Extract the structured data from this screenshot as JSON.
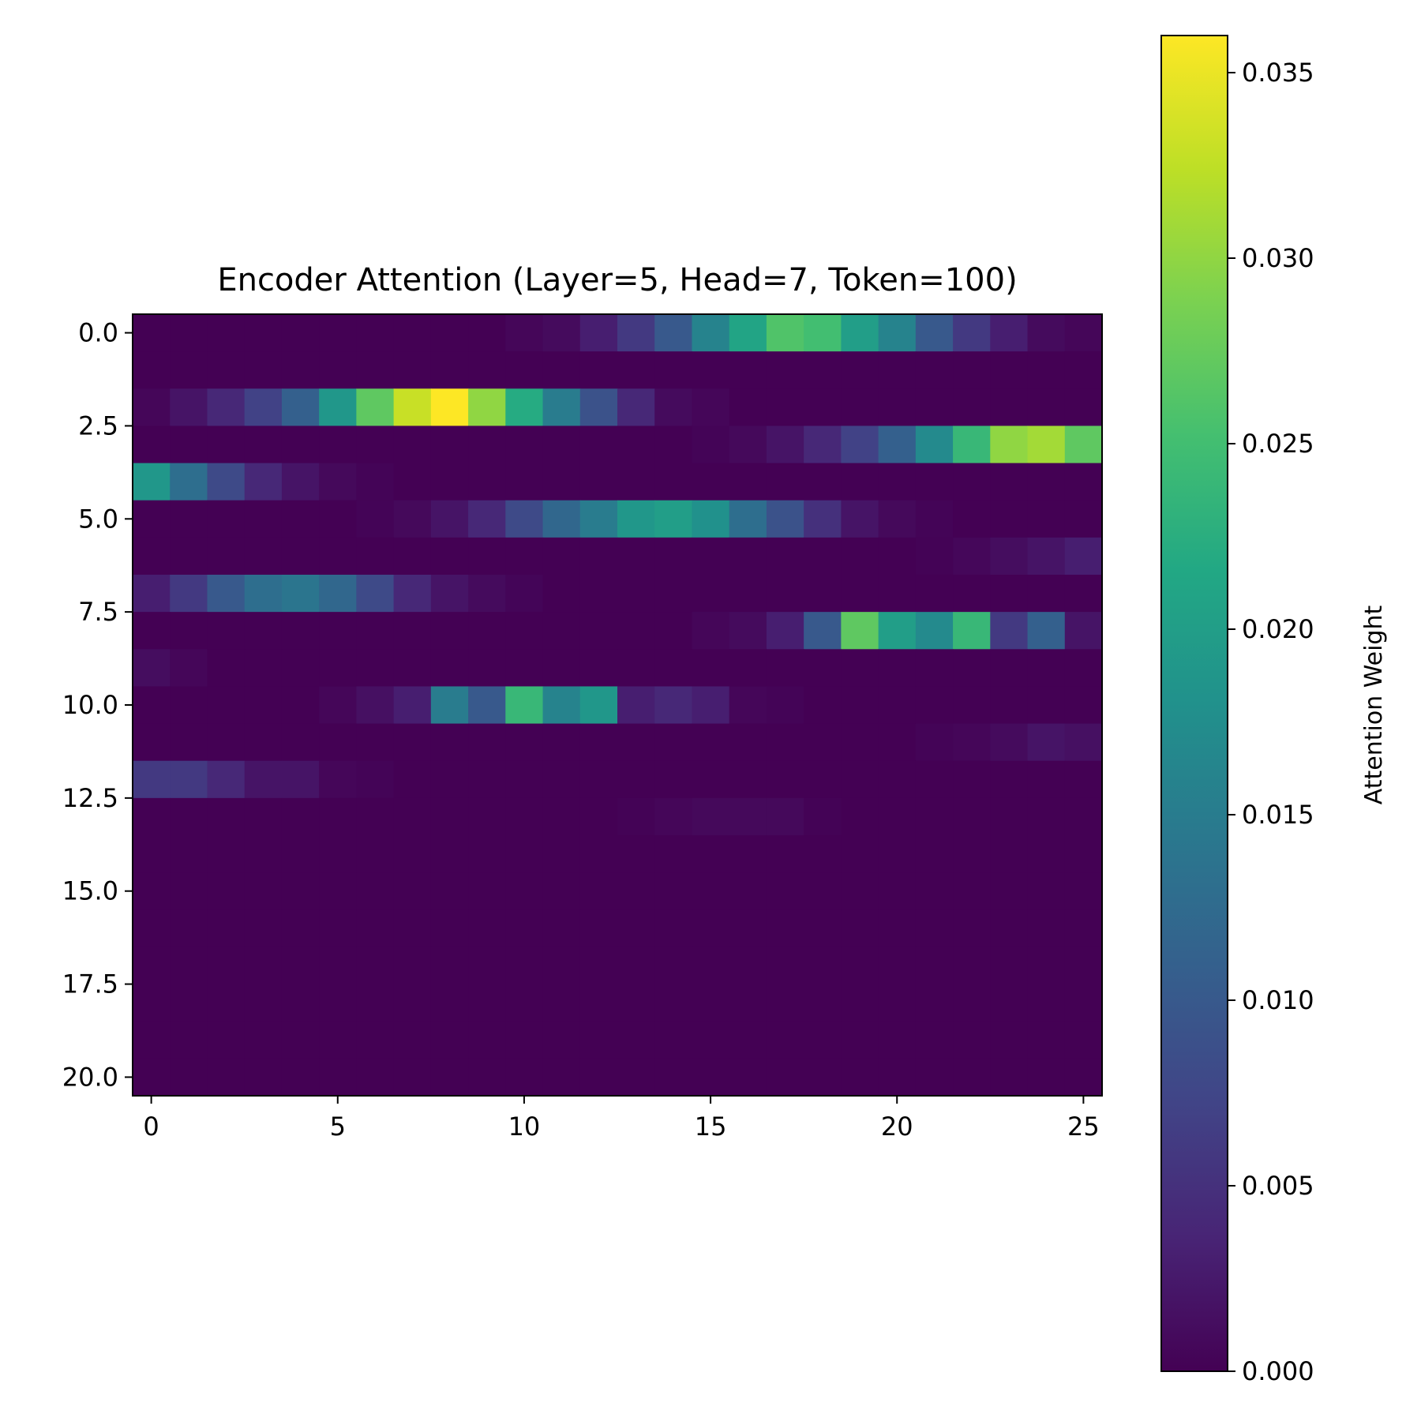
{
  "chart_data": {
    "type": "heatmap",
    "title": "Encoder Attention (Layer=5, Head=7, Token=100)",
    "xlabel": "",
    "ylabel": "",
    "n_rows": 21,
    "n_cols": 26,
    "x_ticks": [
      0,
      5,
      10,
      15,
      20,
      25
    ],
    "x_tick_labels": [
      "0",
      "5",
      "10",
      "15",
      "20",
      "25"
    ],
    "y_ticks": [
      0,
      2.5,
      5,
      7.5,
      10,
      12.5,
      15,
      17.5,
      20
    ],
    "y_tick_labels": [
      "0.0",
      "2.5",
      "5.0",
      "7.5",
      "10.0",
      "12.5",
      "15.0",
      "17.5",
      "20.0"
    ],
    "colormap": "viridis",
    "colorbar": {
      "label": "Attention Weight",
      "range": [
        0,
        0.036
      ],
      "ticks": [
        0,
        0.005,
        0.01,
        0.015,
        0.02,
        0.025,
        0.03,
        0.035
      ],
      "tick_labels": [
        "0.000",
        "0.005",
        "0.010",
        "0.015",
        "0.020",
        "0.025",
        "0.030",
        "0.035"
      ]
    },
    "values": [
      [
        0,
        0,
        0,
        0,
        0,
        0,
        0,
        0,
        0,
        0,
        0.0005,
        0.001,
        0.003,
        0.006,
        0.01,
        0.016,
        0.021,
        0.026,
        0.025,
        0.02,
        0.016,
        0.01,
        0.006,
        0.003,
        0.001,
        0.0005
      ],
      [
        0,
        0,
        0,
        0,
        0,
        0,
        0,
        0,
        0,
        0,
        0,
        0,
        0,
        0,
        0,
        0,
        0,
        0,
        0,
        0,
        0,
        0,
        0,
        0,
        0,
        0
      ],
      [
        0.0005,
        0.002,
        0.004,
        0.007,
        0.011,
        0.019,
        0.027,
        0.033,
        0.036,
        0.03,
        0.022,
        0.015,
        0.009,
        0.004,
        0.001,
        0.0005,
        0,
        0,
        0,
        0,
        0,
        0,
        0,
        0,
        0,
        0
      ],
      [
        0,
        0,
        0,
        0,
        0,
        0,
        0,
        0,
        0,
        0,
        0,
        0,
        0,
        0,
        0,
        0.0003,
        0.0008,
        0.002,
        0.004,
        0.007,
        0.011,
        0.017,
        0.024,
        0.03,
        0.031,
        0.027
      ],
      [
        0.019,
        0.013,
        0.008,
        0.004,
        0.002,
        0.0008,
        0.0003,
        0,
        0,
        0,
        0,
        0,
        0,
        0,
        0,
        0,
        0,
        0,
        0,
        0,
        0,
        0,
        0,
        0,
        0,
        0
      ],
      [
        0,
        0,
        0,
        0,
        0,
        0,
        0.0003,
        0.0008,
        0.002,
        0.004,
        0.008,
        0.012,
        0.015,
        0.019,
        0.02,
        0.018,
        0.013,
        0.009,
        0.005,
        0.002,
        0.0008,
        0.0003,
        0,
        0,
        0,
        0
      ],
      [
        0,
        0,
        0,
        0,
        0,
        0,
        0,
        0,
        0,
        0,
        0,
        0,
        0,
        0,
        0,
        0,
        0,
        0,
        0,
        0,
        0,
        0.0002,
        0.0006,
        0.0012,
        0.002,
        0.003
      ],
      [
        0.003,
        0.006,
        0.01,
        0.013,
        0.014,
        0.012,
        0.008,
        0.004,
        0.002,
        0.001,
        0.0004,
        0,
        0,
        0,
        0,
        0,
        0,
        0,
        0,
        0,
        0,
        0,
        0,
        0,
        0,
        0
      ],
      [
        0,
        0,
        0,
        0,
        0,
        0,
        0,
        0,
        0,
        0,
        0,
        0,
        0,
        0,
        0,
        0.0005,
        0.001,
        0.003,
        0.01,
        0.027,
        0.02,
        0.017,
        0.024,
        0.006,
        0.011,
        0.002
      ],
      [
        0.0012,
        0.0005,
        0,
        0,
        0,
        0,
        0,
        0,
        0,
        0,
        0,
        0,
        0,
        0,
        0,
        0,
        0,
        0,
        0,
        0,
        0,
        0,
        0,
        0,
        0,
        0
      ],
      [
        0,
        0,
        0,
        0,
        0,
        0.0005,
        0.0015,
        0.003,
        0.015,
        0.01,
        0.024,
        0.016,
        0.019,
        0.003,
        0.004,
        0.003,
        0.0005,
        0.0003,
        0,
        0,
        0,
        0,
        0,
        0,
        0,
        0
      ],
      [
        0,
        0,
        0,
        0,
        0,
        0,
        0,
        0,
        0,
        0,
        0,
        0,
        0,
        0,
        0,
        0,
        0,
        0,
        0,
        0,
        0,
        0.0003,
        0.0005,
        0.001,
        0.002,
        0.0015
      ],
      [
        0.006,
        0.006,
        0.004,
        0.002,
        0.002,
        0.0005,
        0.0003,
        0,
        0,
        0,
        0,
        0,
        0,
        0,
        0,
        0,
        0,
        0,
        0,
        0,
        0,
        0,
        0,
        0,
        0,
        0
      ],
      [
        0,
        0,
        0,
        0,
        0,
        0,
        0,
        0,
        0,
        0,
        0,
        0,
        0,
        0.0002,
        0.0005,
        0.0008,
        0.0008,
        0.0008,
        0.0002,
        0,
        0,
        0,
        0,
        0,
        0,
        0
      ],
      [
        0,
        0,
        0,
        0,
        0,
        0,
        0,
        0,
        0,
        0,
        0,
        0,
        0,
        0,
        0,
        0,
        0,
        0,
        0,
        0,
        0,
        0,
        0,
        0,
        0,
        0
      ],
      [
        0,
        0,
        0,
        0,
        0,
        0,
        0,
        0,
        0,
        0,
        0,
        0,
        0,
        0,
        0,
        0,
        0,
        0,
        0,
        0,
        0,
        0,
        0,
        0,
        0,
        0
      ],
      [
        0,
        0,
        0,
        0,
        0,
        0,
        0,
        0,
        0,
        0,
        0,
        0,
        0,
        0,
        0,
        0,
        0,
        0,
        0,
        0,
        0,
        0,
        0,
        0,
        0,
        0
      ],
      [
        0,
        0,
        0,
        0,
        0,
        0,
        0,
        0,
        0,
        0,
        0,
        0,
        0,
        0,
        0,
        0,
        0,
        0,
        0,
        0,
        0,
        0,
        0,
        0,
        0,
        0
      ],
      [
        0,
        0,
        0,
        0,
        0,
        0,
        0,
        0,
        0,
        0,
        0,
        0,
        0,
        0,
        0,
        0,
        0,
        0,
        0,
        0,
        0,
        0,
        0,
        0,
        0,
        0
      ],
      [
        0,
        0,
        0,
        0,
        0,
        0,
        0,
        0,
        0,
        0,
        0,
        0,
        0,
        0,
        0,
        0,
        0,
        0,
        0,
        0,
        0,
        0,
        0,
        0,
        0,
        0
      ],
      [
        0,
        0,
        0,
        0,
        0,
        0,
        0,
        0,
        0,
        0,
        0,
        0,
        0,
        0,
        0,
        0,
        0,
        0,
        0,
        0,
        0,
        0,
        0,
        0,
        0,
        0
      ]
    ]
  }
}
